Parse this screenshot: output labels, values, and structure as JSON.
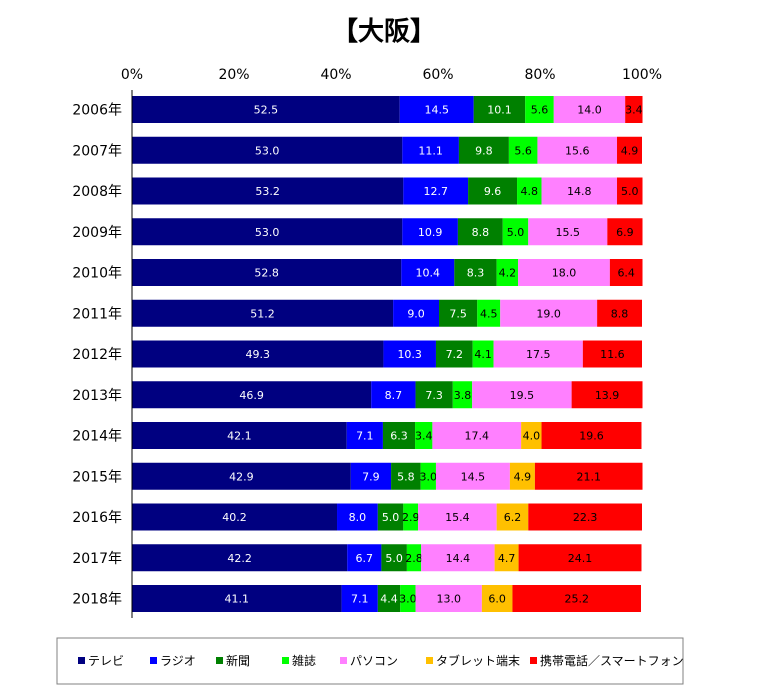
{
  "chart_data": {
    "type": "bar",
    "orientation": "horizontal",
    "stacked": "percent",
    "title": "【大阪】",
    "xlim": [
      0,
      100
    ],
    "x_ticks": [
      "0%",
      "20%",
      "40%",
      "60%",
      "80%",
      "100%"
    ],
    "categories": [
      "2006年",
      "2007年",
      "2008年",
      "2009年",
      "2010年",
      "2011年",
      "2012年",
      "2013年",
      "2014年",
      "2015年",
      "2016年",
      "2017年",
      "2018年"
    ],
    "series": [
      {
        "name": "テレビ",
        "color": "#000080",
        "label_color": "#ffffff",
        "values": [
          52.5,
          53.0,
          53.2,
          53.0,
          52.8,
          51.2,
          49.3,
          46.9,
          42.1,
          42.9,
          40.2,
          42.2,
          41.1
        ]
      },
      {
        "name": "ラジオ",
        "color": "#0000ff",
        "label_color": "#ffffff",
        "values": [
          14.5,
          11.1,
          12.7,
          10.9,
          10.4,
          9.0,
          10.3,
          8.7,
          7.1,
          7.9,
          8.0,
          6.7,
          7.1
        ]
      },
      {
        "name": "新聞",
        "color": "#008000",
        "label_color": "#ffffff",
        "values": [
          10.1,
          9.8,
          9.6,
          8.8,
          8.3,
          7.5,
          7.2,
          7.3,
          6.3,
          5.8,
          5.0,
          5.0,
          4.4
        ]
      },
      {
        "name": "雑誌",
        "color": "#00ff00",
        "label_color": "#000000",
        "values": [
          5.6,
          5.6,
          4.8,
          5.0,
          4.2,
          4.5,
          4.1,
          3.8,
          3.4,
          3.0,
          2.9,
          2.8,
          3.0
        ]
      },
      {
        "name": "パソコン",
        "color": "#ff80ff",
        "label_color": "#000000",
        "values": [
          14.0,
          15.6,
          14.8,
          15.5,
          18.0,
          19.0,
          17.5,
          19.5,
          17.4,
          14.5,
          15.4,
          14.4,
          13.0
        ]
      },
      {
        "name": "タブレット端末",
        "color": "#ffc000",
        "label_color": "#000000",
        "values": [
          null,
          null,
          null,
          null,
          null,
          null,
          null,
          null,
          4.0,
          4.9,
          6.2,
          4.7,
          6.0
        ]
      },
      {
        "name": "携帯電話／スマートフォン",
        "color": "#ff0000",
        "label_color": "#000000",
        "values": [
          3.4,
          4.9,
          5.0,
          6.9,
          6.4,
          8.8,
          11.6,
          13.9,
          19.6,
          21.1,
          22.3,
          24.1,
          25.2
        ]
      }
    ],
    "grid": false,
    "legend_position": "bottom"
  }
}
